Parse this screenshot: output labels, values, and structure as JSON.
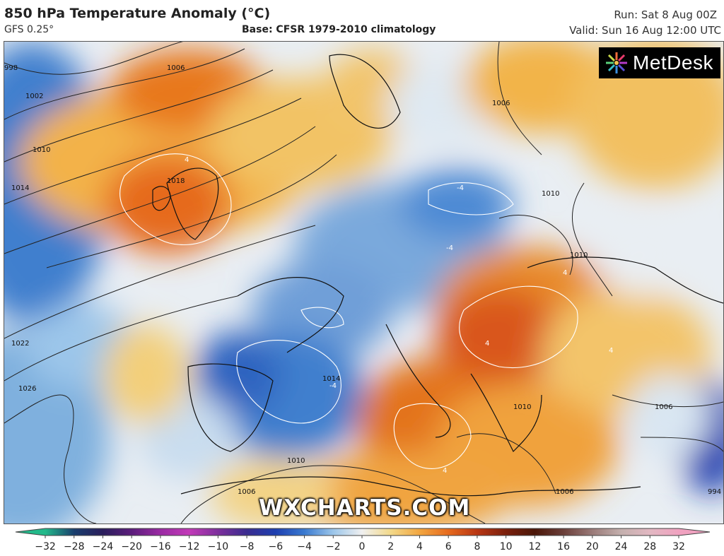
{
  "header": {
    "title": "850 hPa Temperature Anomaly (°C)",
    "model": "GFS 0.25°",
    "base": "Base: CFSR 1979-2010 climatology",
    "run": "Run: Sat 8 Aug 00Z",
    "valid": "Valid: Sun 16 Aug 12:00 UTC"
  },
  "logo": {
    "text": "MetDesk"
  },
  "watermark": "WXCHARTS.COM",
  "isobar_labels": [
    "1002",
    "1006",
    "1010",
    "1014",
    "1018",
    "1022",
    "1026",
    "1010",
    "1010",
    "1010",
    "1014",
    "1006",
    "1006",
    "1010",
    "998",
    "1006",
    "1006",
    "994"
  ],
  "contour_labels": [
    "4",
    "-4",
    "4",
    "-4",
    "4",
    "-4",
    "4",
    "4"
  ],
  "color_scale": {
    "ticks": [
      "−32",
      "−28",
      "−24",
      "−20",
      "−16",
      "−12",
      "−10",
      "−8",
      "−6",
      "−4",
      "−2",
      "0",
      "2",
      "4",
      "6",
      "8",
      "10",
      "12",
      "16",
      "20",
      "24",
      "28",
      "32"
    ],
    "colors": [
      "#23b98a",
      "#1a3f6e",
      "#2a1e5c",
      "#5c1d7c",
      "#9a2aa3",
      "#c23ab8",
      "#7d2f9c",
      "#3a2c8f",
      "#1d3fb0",
      "#3a7ad0",
      "#9cc6ea",
      "#f0f0f0",
      "#f3d98a",
      "#f2a640",
      "#e66a1e",
      "#b83614",
      "#7a1f0c",
      "#4a1608",
      "#6b3f3a",
      "#9a7a78",
      "#c4b0ae",
      "#e2b8c2",
      "#f0a2c0"
    ]
  },
  "colors": {
    "warm": "#f2a640",
    "warm_strong": "#e66a1e",
    "cool": "#3a7ad0",
    "cool_strong": "#1d3fb0",
    "neutral": "#f0f0f0"
  }
}
